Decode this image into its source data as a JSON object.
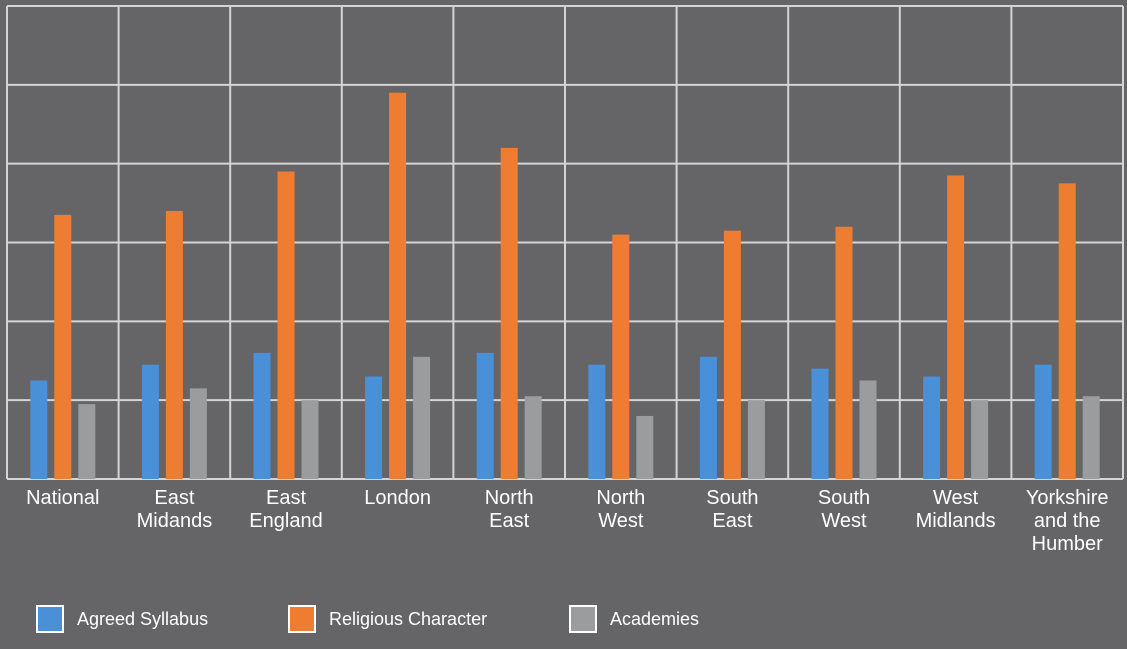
{
  "chart_data": {
    "type": "bar",
    "title": "",
    "xlabel": "",
    "ylabel": "",
    "categories": [
      [
        "National"
      ],
      [
        "East",
        "Midands"
      ],
      [
        "East",
        "England"
      ],
      [
        "London"
      ],
      [
        "North",
        "East"
      ],
      [
        "North",
        "West"
      ],
      [
        "South",
        "East"
      ],
      [
        "South",
        "West"
      ],
      [
        "West",
        "Midlands"
      ],
      [
        "Yorkshire",
        "and the",
        "Humber"
      ]
    ],
    "series": [
      {
        "name": "Agreed Syllabus",
        "color": "#4a90d9",
        "values": [
          12.5,
          14.5,
          16,
          13,
          16,
          14.5,
          15.5,
          14,
          13,
          14.5
        ]
      },
      {
        "name": "Religious Character",
        "color": "#ef7d31",
        "values": [
          33.5,
          34,
          39,
          49,
          42,
          31,
          31.5,
          32,
          38.5,
          37.5
        ]
      },
      {
        "name": "Academies",
        "color": "#9a9c9d",
        "values": [
          9.5,
          11.5,
          10,
          15.5,
          10.5,
          8,
          10,
          12.5,
          10,
          10.5
        ]
      }
    ],
    "ylim": [
      0,
      60
    ],
    "grid": true,
    "legend_position": "bottom-left"
  }
}
